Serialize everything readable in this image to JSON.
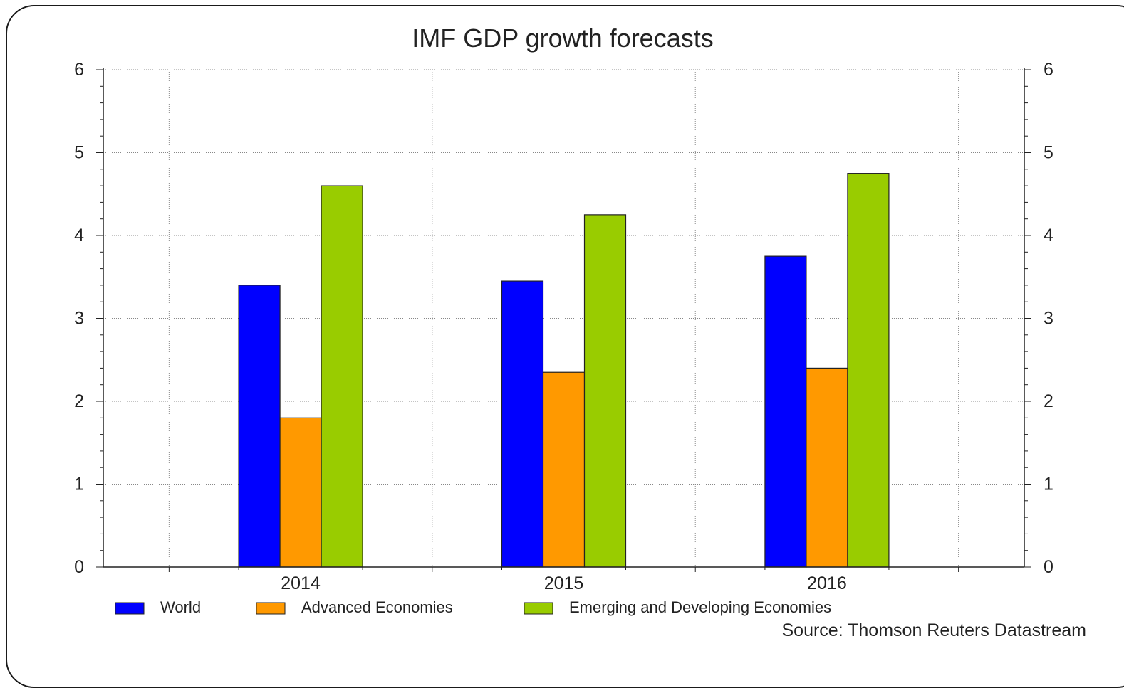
{
  "chart_data": {
    "type": "bar",
    "title": "IMF GDP growth forecasts",
    "categories": [
      "2014",
      "2015",
      "2016"
    ],
    "series": [
      {
        "name": "World",
        "values": [
          3.4,
          3.45,
          3.75
        ],
        "color": "#0000ff"
      },
      {
        "name": "Advanced Economies",
        "values": [
          1.8,
          2.35,
          2.4
        ],
        "color": "#ff9900"
      },
      {
        "name": "Emerging and Developing Economies",
        "values": [
          4.6,
          4.25,
          4.75
        ],
        "color": "#99cc00"
      }
    ],
    "ylim": [
      0,
      6
    ],
    "yticks": [
      0,
      1,
      2,
      3,
      4,
      5,
      6
    ],
    "secondary_y_axis": true,
    "grid": true,
    "legend_position": "bottom",
    "source": "Source: Thomson Reuters Datastream"
  }
}
